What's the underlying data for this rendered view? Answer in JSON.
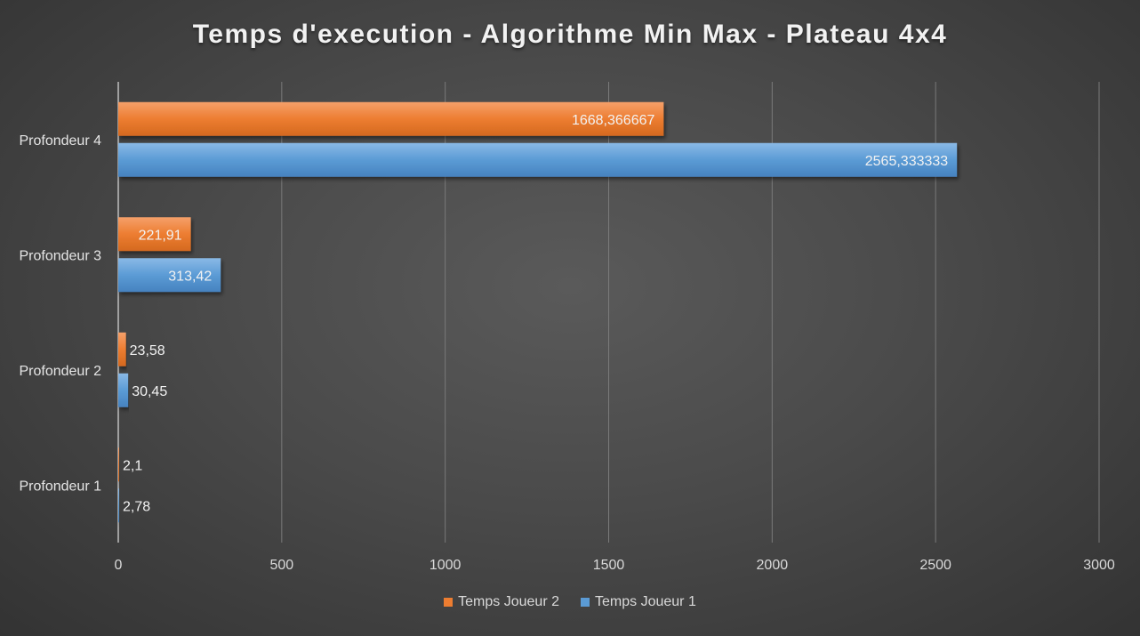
{
  "chart_data": {
    "type": "bar",
    "orientation": "horizontal",
    "title": "Temps d'execution - Algorithme Min Max - Plateau 4x4",
    "categories": [
      "Profondeur 1",
      "Profondeur 2",
      "Profondeur 3",
      "Profondeur 4"
    ],
    "series": [
      {
        "name": "Temps Joueur 2",
        "color": "#ed7d31",
        "values": [
          2.1,
          23.58,
          221.91,
          1668.366667
        ],
        "labels": [
          "2,1",
          "23,58",
          "221,91",
          "1668,366667"
        ]
      },
      {
        "name": "Temps Joueur 1",
        "color": "#5b9bd5",
        "values": [
          2.78,
          30.45,
          313.42,
          2565.333333
        ],
        "labels": [
          "2,78",
          "30,45",
          "313,42",
          "2565,333333"
        ]
      }
    ],
    "xlim": [
      0,
      3000
    ],
    "xticks": [
      0,
      500,
      1000,
      1500,
      2000,
      2500,
      3000
    ],
    "xtick_labels": [
      "0",
      "500",
      "1000",
      "1500",
      "2000",
      "2500",
      "3000"
    ],
    "grid": true,
    "legend_position": "bottom"
  }
}
